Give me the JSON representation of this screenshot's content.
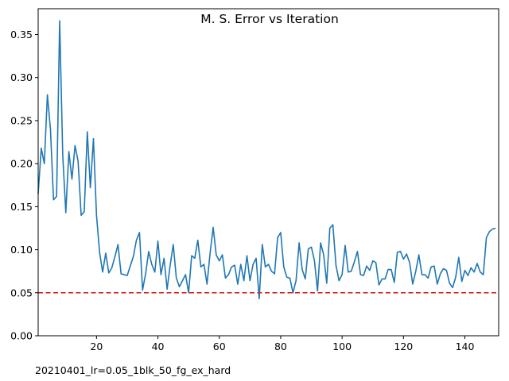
{
  "chart_data": {
    "type": "line",
    "title": "M. S. Error vs Iteration",
    "xlabel": "",
    "ylabel": "",
    "xlim": [
      1,
      151
    ],
    "ylim": [
      0.0,
      0.38
    ],
    "xticks": [
      20,
      40,
      60,
      80,
      100,
      120,
      140
    ],
    "yticks": [
      0.0,
      0.05,
      0.1,
      0.15,
      0.2,
      0.25,
      0.3,
      0.35
    ],
    "ytick_labels": [
      "0.00",
      "0.05",
      "0.10",
      "0.15",
      "0.20",
      "0.25",
      "0.30",
      "0.35"
    ],
    "grid": false,
    "series": [
      {
        "color": "#1f77b4",
        "x": [
          1,
          2,
          3,
          4,
          5,
          6,
          7,
          8,
          9,
          10,
          11,
          12,
          13,
          14,
          15,
          16,
          17,
          18,
          19,
          20,
          21,
          22,
          23,
          24,
          25,
          26,
          27,
          28,
          29,
          30,
          31,
          32,
          33,
          34,
          35,
          36,
          37,
          38,
          39,
          40,
          41,
          42,
          43,
          44,
          45,
          46,
          47,
          48,
          49,
          50,
          51,
          52,
          53,
          54,
          55,
          56,
          57,
          58,
          59,
          60,
          61,
          62,
          63,
          64,
          65,
          66,
          67,
          68,
          69,
          70,
          71,
          72,
          73,
          74,
          75,
          76,
          77,
          78,
          79,
          80,
          81,
          82,
          83,
          84,
          85,
          86,
          87,
          88,
          89,
          90,
          91,
          92,
          93,
          94,
          95,
          96,
          97,
          98,
          99,
          100,
          101,
          102,
          103,
          104,
          105,
          106,
          107,
          108,
          109,
          110,
          111,
          112,
          113,
          114,
          115,
          116,
          117,
          118,
          119,
          120,
          121,
          122,
          123,
          124,
          125,
          126,
          127,
          128,
          129,
          130,
          131,
          132,
          133,
          134,
          135,
          136,
          137,
          138,
          139,
          140,
          141,
          142,
          143,
          144,
          145,
          146,
          147,
          148,
          149,
          150
        ],
        "y": [
          0.165,
          0.218,
          0.2,
          0.28,
          0.24,
          0.158,
          0.162,
          0.366,
          0.21,
          0.143,
          0.214,
          0.182,
          0.221,
          0.203,
          0.14,
          0.144,
          0.237,
          0.172,
          0.229,
          0.14,
          0.097,
          0.074,
          0.096,
          0.073,
          0.079,
          0.092,
          0.106,
          0.072,
          0.071,
          0.07,
          0.081,
          0.092,
          0.111,
          0.12,
          0.053,
          0.072,
          0.098,
          0.083,
          0.074,
          0.11,
          0.071,
          0.09,
          0.054,
          0.082,
          0.106,
          0.067,
          0.057,
          0.064,
          0.071,
          0.05,
          0.093,
          0.09,
          0.111,
          0.08,
          0.083,
          0.06,
          0.096,
          0.126,
          0.094,
          0.087,
          0.094,
          0.067,
          0.071,
          0.08,
          0.082,
          0.06,
          0.083,
          0.064,
          0.093,
          0.064,
          0.083,
          0.09,
          0.043,
          0.106,
          0.08,
          0.083,
          0.075,
          0.072,
          0.114,
          0.12,
          0.08,
          0.068,
          0.067,
          0.05,
          0.064,
          0.108,
          0.077,
          0.066,
          0.101,
          0.103,
          0.087,
          0.052,
          0.108,
          0.094,
          0.061,
          0.125,
          0.129,
          0.082,
          0.064,
          0.071,
          0.105,
          0.074,
          0.075,
          0.086,
          0.098,
          0.071,
          0.07,
          0.081,
          0.076,
          0.087,
          0.085,
          0.059,
          0.066,
          0.066,
          0.077,
          0.077,
          0.062,
          0.097,
          0.098,
          0.089,
          0.095,
          0.085,
          0.06,
          0.075,
          0.094,
          0.071,
          0.071,
          0.067,
          0.08,
          0.081,
          0.06,
          0.072,
          0.078,
          0.076,
          0.061,
          0.056,
          0.068,
          0.091,
          0.063,
          0.076,
          0.07,
          0.079,
          0.074,
          0.084,
          0.074,
          0.071,
          0.114,
          0.121,
          0.124,
          0.125
        ]
      }
    ],
    "reference_line": {
      "y": 0.05,
      "color": "#d62728",
      "style": "dashed"
    },
    "footnote": "20210401_lr=0.05_1blk_50_fg_ex_hard"
  }
}
